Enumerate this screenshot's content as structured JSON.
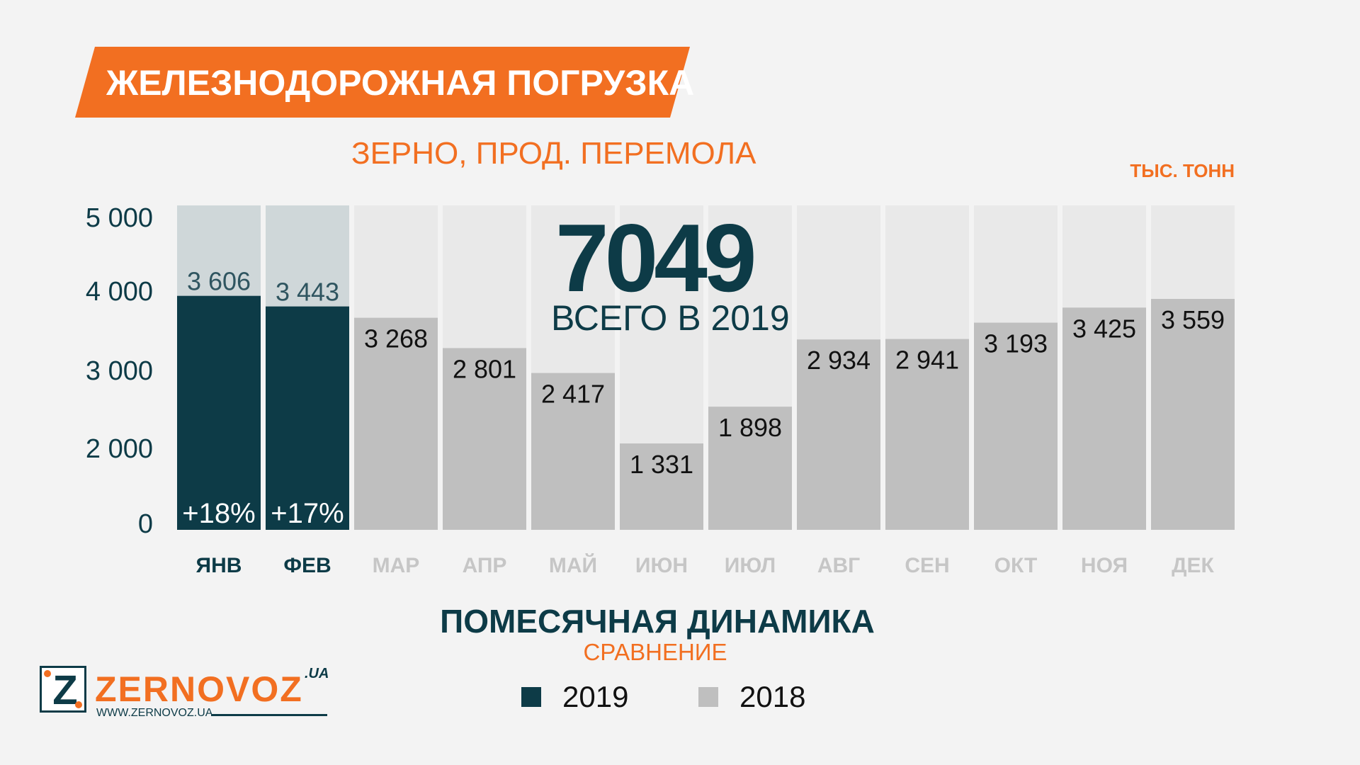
{
  "header": {
    "title": "ЖЕЛЕЗНОДОРОЖНАЯ ПОГРУЗКА",
    "subtitle": "ЗЕРНО, ПРОД. ПЕРЕМОЛА",
    "unit": "ТЫС. ТОНН"
  },
  "summary": {
    "total": "7049",
    "total_label": "ВСЕГО В 2019"
  },
  "footer": {
    "title": "ПОМЕСЯЧНАЯ ДИНАМИКА",
    "subtitle": "СРАВНЕНИЕ"
  },
  "logo": {
    "letter": "Z",
    "name": "ZERNOVOZ",
    "suffix": ".UA",
    "url": "WWW.ZERNOVOZ.UA"
  },
  "colors": {
    "accent": "#f26f21",
    "dark": "#0d3b47",
    "bar2018": "#bfbfbf",
    "bar2018_behind": "#cfd7d9",
    "column_bg": "#e9e9e9"
  },
  "chart_data": {
    "type": "bar",
    "categories": [
      "ЯНВ",
      "ФЕВ",
      "МАР",
      "АПР",
      "МАЙ",
      "ИЮН",
      "ИЮЛ",
      "АВГ",
      "СЕН",
      "ОКТ",
      "НОЯ",
      "ДЕК"
    ],
    "series": [
      {
        "name": "2019",
        "values": [
          3606,
          3443,
          null,
          null,
          null,
          null,
          null,
          null,
          null,
          null,
          null,
          null
        ]
      },
      {
        "name": "2018",
        "values": [
          null,
          null,
          3268,
          2801,
          2417,
          1331,
          1898,
          2934,
          2941,
          3193,
          3425,
          3559
        ]
      }
    ],
    "value_labels": [
      "3 606",
      "3 443",
      "3 268",
      "2 801",
      "2 417",
      "1 331",
      "1 898",
      "2 934",
      "2 941",
      "3 193",
      "3 425",
      "3 559"
    ],
    "change_labels": [
      "+18%",
      "+17%",
      "",
      "",
      "",
      "",
      "",
      "",
      "",
      "",
      "",
      ""
    ],
    "y_ticks": [
      0,
      2000,
      3000,
      4000,
      5000
    ],
    "y_tick_labels": [
      "0",
      "2 000",
      "3 000",
      "4 000",
      "5 000"
    ],
    "ylim": [
      0,
      5000
    ],
    "legend": [
      "2019",
      "2018"
    ],
    "legend_position": "bottom"
  }
}
